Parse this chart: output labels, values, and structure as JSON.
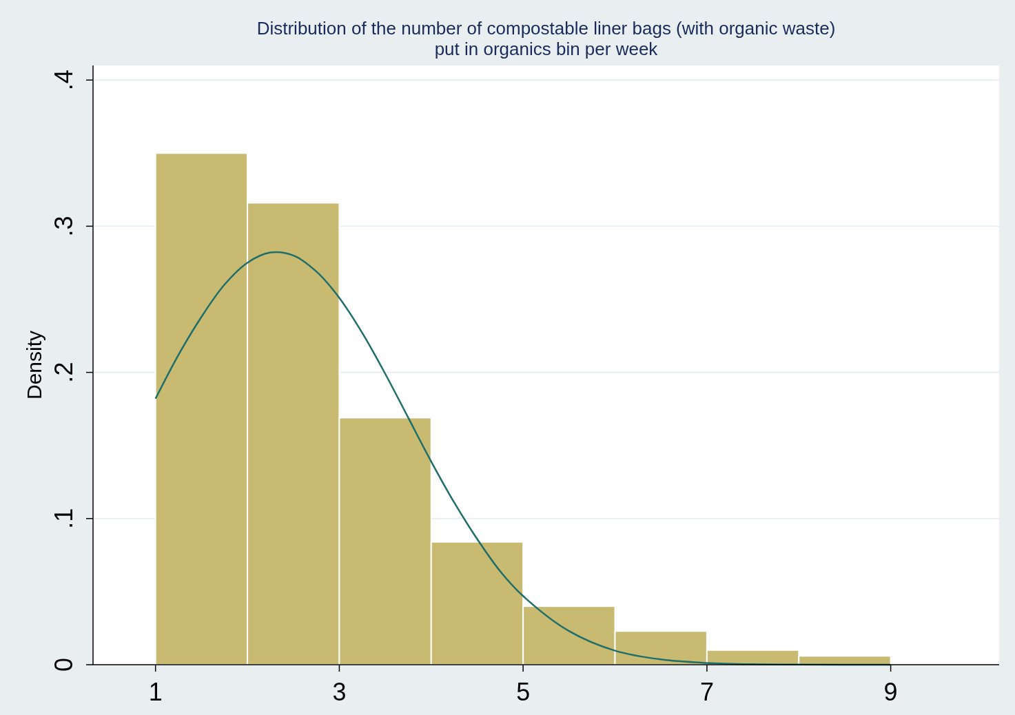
{
  "chart_data": {
    "type": "histogram",
    "title": "Distribution of the number of compostable liner bags (with organic waste)\nput in organics bin per week",
    "ylabel": "Density",
    "xlim": [
      0.32,
      10.18
    ],
    "xticks": [
      1,
      3,
      5,
      7,
      9
    ],
    "ylim": [
      0,
      0.41
    ],
    "yticks": [
      {
        "value": 0,
        "label": "0"
      },
      {
        "value": 0.1,
        "label": ".1"
      },
      {
        "value": 0.2,
        "label": ".2"
      },
      {
        "value": 0.3,
        "label": ".3"
      },
      {
        "value": 0.4,
        "label": ".4"
      }
    ],
    "grid": "y",
    "series": [
      {
        "color": "#c9ba72",
        "bins": [
          1,
          2,
          3,
          4,
          5,
          6,
          7,
          8,
          9
        ],
        "values": [
          0.35,
          0.316,
          0.169,
          0.084,
          0.04,
          0.023,
          0.01,
          0.006
        ]
      },
      {
        "type": "line",
        "color": "#1f6e6a",
        "x": [
          1,
          1.25,
          1.5,
          1.75,
          2,
          2.25,
          2.5,
          2.75,
          3,
          3.25,
          3.5,
          3.75,
          4,
          4.25,
          4.5,
          4.75,
          5,
          5.5,
          6,
          6.5,
          7,
          7.5,
          8,
          9
        ],
        "values": [
          0.182,
          0.212,
          0.238,
          0.26,
          0.275,
          0.282,
          0.28,
          0.269,
          0.251,
          0.227,
          0.199,
          0.169,
          0.139,
          0.111,
          0.086,
          0.064,
          0.047,
          0.023,
          0.0096,
          0.0036,
          0.0012,
          0.0003,
          0.0001,
          0
        ]
      }
    ]
  }
}
